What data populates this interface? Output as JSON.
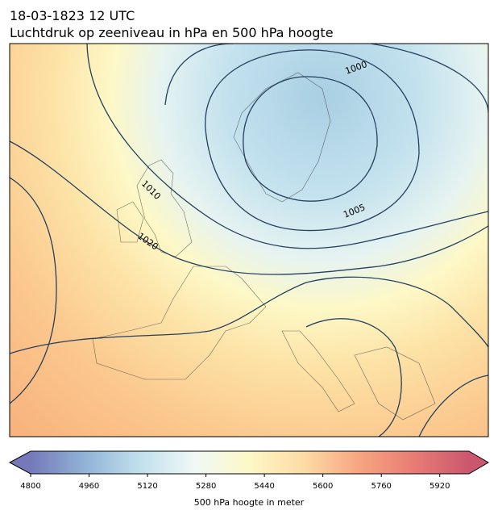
{
  "header": {
    "title": "18-03-1823 12 UTC",
    "subtitle": "Luchtdruk op zeeniveau in hPa en 500 hPa hoogte"
  },
  "map": {
    "contour_labels": [
      "1000",
      "1005",
      "1010",
      "1020"
    ]
  },
  "colorbar": {
    "label": "500 hPa hoogte in meter",
    "range": [
      4800,
      6000
    ],
    "ticks": [
      4800,
      4960,
      5120,
      5280,
      5440,
      5600,
      5760,
      5920
    ],
    "colors": [
      "#5d62ad",
      "#7ea6cf",
      "#b7dbea",
      "#eef7f4",
      "#fdf6bd",
      "#fcd595",
      "#f5956b",
      "#e4655c",
      "#c23a55"
    ]
  }
}
